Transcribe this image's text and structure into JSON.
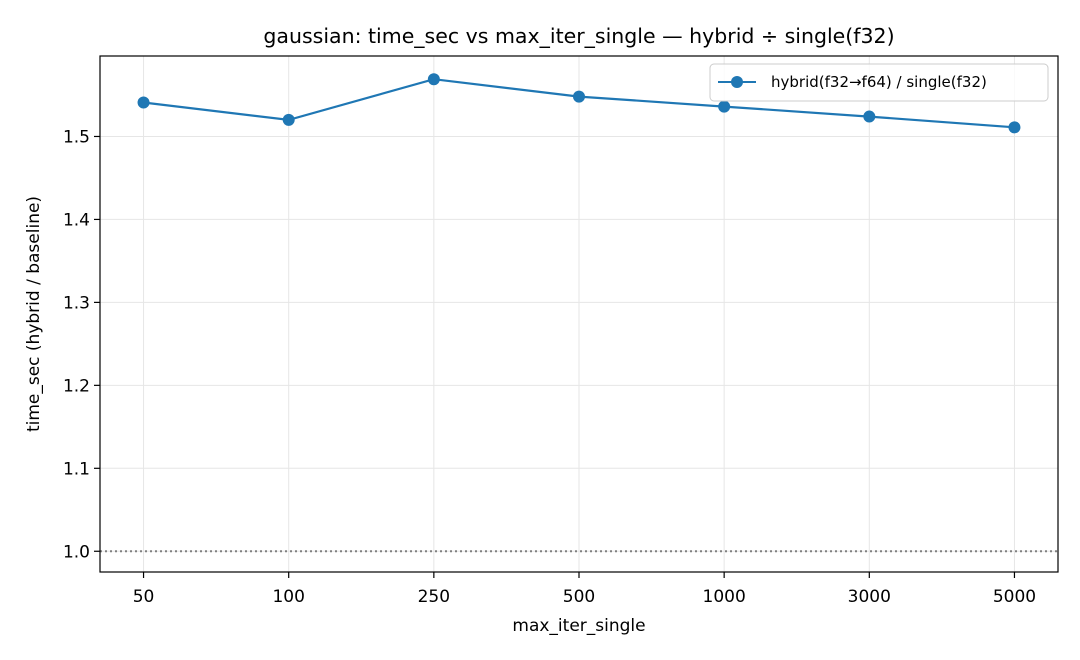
{
  "chart_data": {
    "type": "line",
    "title": "gaussian: time_sec vs max_iter_single — hybrid ÷ single(f32)",
    "xlabel": "max_iter_single",
    "ylabel": "time_sec (hybrid / baseline)",
    "categories": [
      "50",
      "100",
      "250",
      "500",
      "1000",
      "3000",
      "5000"
    ],
    "series": [
      {
        "name": "hybrid(f32→f64) / single(f32)",
        "color": "#1f77b4",
        "values": [
          1.541,
          1.52,
          1.569,
          1.548,
          1.536,
          1.524,
          1.511
        ]
      }
    ],
    "ylim": [
      0.975,
      1.597
    ],
    "yticks": [
      1.0,
      1.1,
      1.2,
      1.3,
      1.4,
      1.5
    ],
    "ytick_labels": [
      "1.0",
      "1.1",
      "1.2",
      "1.3",
      "1.4",
      "1.5"
    ],
    "reference_line": {
      "y": 1.0,
      "style": "dotted",
      "color": "#808080"
    },
    "grid": true,
    "legend_position": "top-right"
  }
}
